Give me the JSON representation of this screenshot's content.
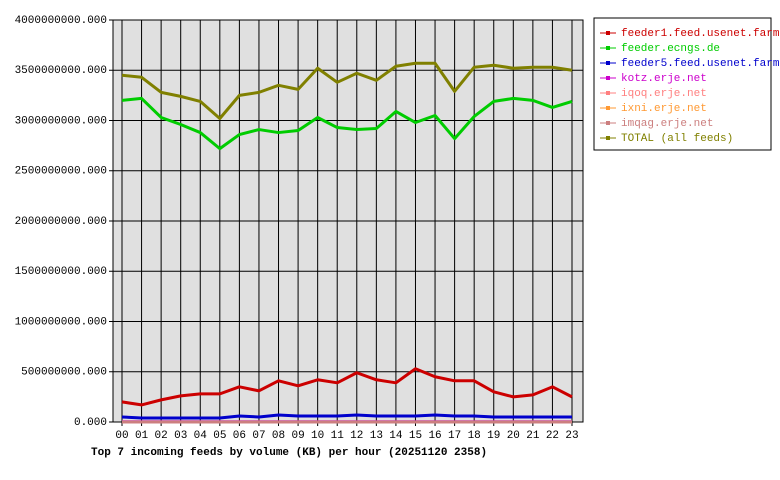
{
  "chart_data": {
    "type": "line",
    "title": "Top 7 incoming feeds by volume (KB) per hour (20251120 2358)",
    "categories": [
      "00",
      "01",
      "02",
      "03",
      "04",
      "05",
      "06",
      "07",
      "08",
      "09",
      "10",
      "11",
      "12",
      "13",
      "14",
      "15",
      "16",
      "17",
      "18",
      "19",
      "20",
      "21",
      "22",
      "23"
    ],
    "ylim": [
      0,
      4000000000
    ],
    "yticks": [
      {
        "value": 0,
        "label": "0.000"
      },
      {
        "value": 500000000,
        "label": "500000000.000"
      },
      {
        "value": 1000000000,
        "label": "1000000000.000"
      },
      {
        "value": 1500000000,
        "label": "1500000000.000"
      },
      {
        "value": 2000000000,
        "label": "2000000000.000"
      },
      {
        "value": 2500000000,
        "label": "2500000000.000"
      },
      {
        "value": 3000000000,
        "label": "3000000000.000"
      },
      {
        "value": 3500000000,
        "label": "3500000000.000"
      },
      {
        "value": 4000000000,
        "label": "4000000000.000"
      }
    ],
    "grid": true,
    "legend": "right",
    "series": [
      {
        "name": "feeder1.feed.usenet.farm",
        "color": "#cc0000",
        "values": [
          200000000,
          170000000,
          220000000,
          260000000,
          280000000,
          280000000,
          350000000,
          310000000,
          410000000,
          360000000,
          420000000,
          390000000,
          490000000,
          420000000,
          390000000,
          530000000,
          450000000,
          410000000,
          410000000,
          300000000,
          250000000,
          270000000,
          350000000,
          250000000
        ]
      },
      {
        "name": "feeder.ecngs.de",
        "color": "#00cc00",
        "values": [
          3200000000,
          3220000000,
          3030000000,
          2960000000,
          2880000000,
          2720000000,
          2860000000,
          2910000000,
          2880000000,
          2900000000,
          3030000000,
          2930000000,
          2910000000,
          2920000000,
          3090000000,
          2980000000,
          3050000000,
          2820000000,
          3040000000,
          3190000000,
          3220000000,
          3200000000,
          3130000000,
          3190000000
        ]
      },
      {
        "name": "feeder5.feed.usenet.farm",
        "color": "#0000cc",
        "values": [
          50000000,
          40000000,
          40000000,
          40000000,
          40000000,
          40000000,
          60000000,
          50000000,
          70000000,
          60000000,
          60000000,
          60000000,
          70000000,
          60000000,
          60000000,
          60000000,
          70000000,
          60000000,
          60000000,
          50000000,
          50000000,
          50000000,
          50000000,
          50000000
        ]
      },
      {
        "name": "kotz.erje.net",
        "color": "#cc00cc",
        "values": [
          2000000,
          2000000,
          2000000,
          2000000,
          2000000,
          2000000,
          2000000,
          2000000,
          2000000,
          2000000,
          2000000,
          2000000,
          2000000,
          2000000,
          2000000,
          2000000,
          2000000,
          2000000,
          2000000,
          2000000,
          2000000,
          2000000,
          2000000,
          2000000
        ]
      },
      {
        "name": "iqoq.erje.net",
        "color": "#ff8080",
        "values": [
          0,
          0,
          0,
          0,
          0,
          0,
          0,
          0,
          0,
          0,
          0,
          0,
          0,
          0,
          0,
          0,
          0,
          0,
          0,
          0,
          0,
          0,
          0,
          0
        ]
      },
      {
        "name": "ixni.erje.net",
        "color": "#ff9933",
        "values": [
          0,
          0,
          0,
          0,
          0,
          0,
          0,
          0,
          0,
          0,
          0,
          0,
          0,
          0,
          0,
          0,
          0,
          0,
          0,
          0,
          0,
          0,
          0,
          0
        ]
      },
      {
        "name": "imqag.erje.net",
        "color": "#cc7f7f",
        "values": [
          0,
          0,
          0,
          0,
          0,
          0,
          0,
          0,
          0,
          0,
          0,
          0,
          0,
          0,
          0,
          0,
          0,
          0,
          0,
          0,
          0,
          0,
          0,
          0
        ]
      },
      {
        "name": "TOTAL (all feeds)",
        "color": "#808000",
        "values": [
          3450000000,
          3430000000,
          3280000000,
          3240000000,
          3190000000,
          3020000000,
          3250000000,
          3280000000,
          3350000000,
          3310000000,
          3520000000,
          3380000000,
          3470000000,
          3400000000,
          3540000000,
          3570000000,
          3570000000,
          3290000000,
          3530000000,
          3550000000,
          3520000000,
          3530000000,
          3530000000,
          3500000000
        ]
      }
    ]
  }
}
